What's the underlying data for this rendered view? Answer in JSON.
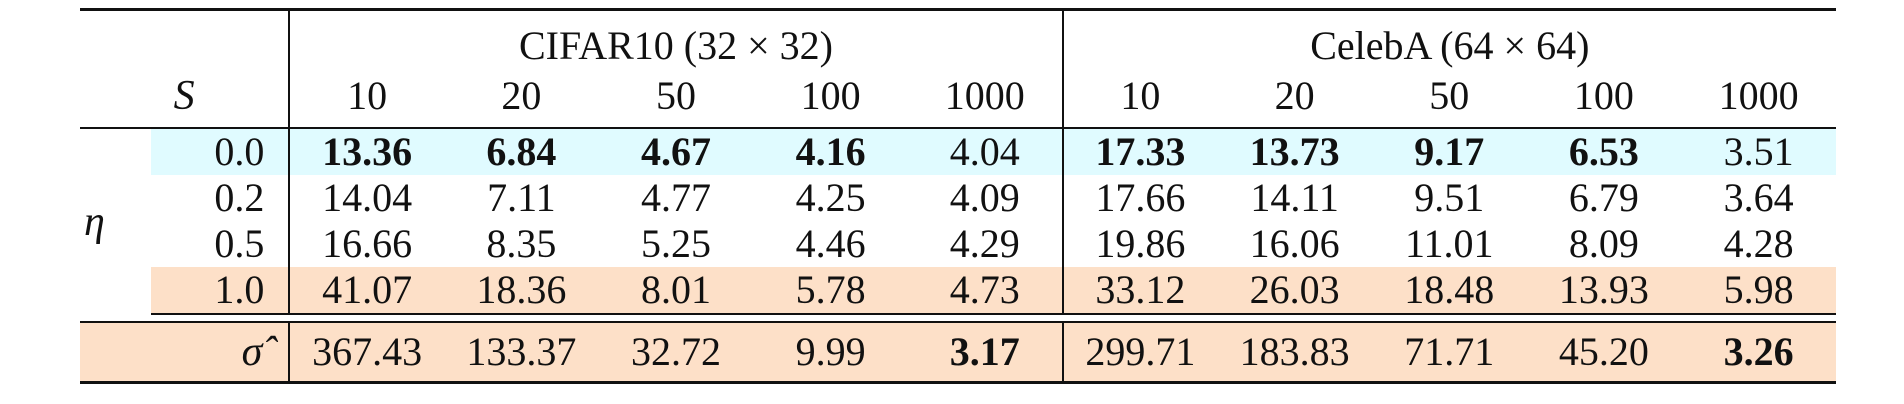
{
  "table": {
    "datasets": [
      {
        "name": "CIFAR10 (32 × 32)"
      },
      {
        "name": "CelebA (64 × 64)"
      }
    ],
    "s_label": "S",
    "eta_label": "η",
    "sigma_label": "σ̂",
    "steps": [
      "10",
      "20",
      "50",
      "100",
      "1000",
      "10",
      "20",
      "50",
      "100",
      "1000"
    ],
    "rows": [
      {
        "eta": "0.0",
        "cells": [
          {
            "v": "13.36",
            "b": true
          },
          {
            "v": "6.84",
            "b": true
          },
          {
            "v": "4.67",
            "b": true
          },
          {
            "v": "4.16",
            "b": true
          },
          {
            "v": "4.04",
            "b": false
          },
          {
            "v": "17.33",
            "b": true
          },
          {
            "v": "13.73",
            "b": true
          },
          {
            "v": "9.17",
            "b": true
          },
          {
            "v": "6.53",
            "b": true
          },
          {
            "v": "3.51",
            "b": false
          }
        ],
        "shade": "#e0fbff"
      },
      {
        "eta": "0.2",
        "cells": [
          {
            "v": "14.04",
            "b": false
          },
          {
            "v": "7.11",
            "b": false
          },
          {
            "v": "4.77",
            "b": false
          },
          {
            "v": "4.25",
            "b": false
          },
          {
            "v": "4.09",
            "b": false
          },
          {
            "v": "17.66",
            "b": false
          },
          {
            "v": "14.11",
            "b": false
          },
          {
            "v": "9.51",
            "b": false
          },
          {
            "v": "6.79",
            "b": false
          },
          {
            "v": "3.64",
            "b": false
          }
        ],
        "shade": ""
      },
      {
        "eta": "0.5",
        "cells": [
          {
            "v": "16.66",
            "b": false
          },
          {
            "v": "8.35",
            "b": false
          },
          {
            "v": "5.25",
            "b": false
          },
          {
            "v": "4.46",
            "b": false
          },
          {
            "v": "4.29",
            "b": false
          },
          {
            "v": "19.86",
            "b": false
          },
          {
            "v": "16.06",
            "b": false
          },
          {
            "v": "11.01",
            "b": false
          },
          {
            "v": "8.09",
            "b": false
          },
          {
            "v": "4.28",
            "b": false
          }
        ],
        "shade": ""
      },
      {
        "eta": "1.0",
        "cells": [
          {
            "v": "41.07",
            "b": false
          },
          {
            "v": "18.36",
            "b": false
          },
          {
            "v": "8.01",
            "b": false
          },
          {
            "v": "5.78",
            "b": false
          },
          {
            "v": "4.73",
            "b": false
          },
          {
            "v": "33.12",
            "b": false
          },
          {
            "v": "26.03",
            "b": false
          },
          {
            "v": "18.48",
            "b": false
          },
          {
            "v": "13.93",
            "b": false
          },
          {
            "v": "5.98",
            "b": false
          }
        ],
        "shade": "#fde0c8"
      }
    ],
    "sigma_row": {
      "cells": [
        {
          "v": "367.43",
          "b": false
        },
        {
          "v": "133.37",
          "b": false
        },
        {
          "v": "32.72",
          "b": false
        },
        {
          "v": "9.99",
          "b": false
        },
        {
          "v": "3.17",
          "b": true
        },
        {
          "v": "299.71",
          "b": false
        },
        {
          "v": "183.83",
          "b": false
        },
        {
          "v": "71.71",
          "b": false
        },
        {
          "v": "45.20",
          "b": false
        },
        {
          "v": "3.26",
          "b": true
        }
      ],
      "shade": "#fde0c8"
    }
  }
}
